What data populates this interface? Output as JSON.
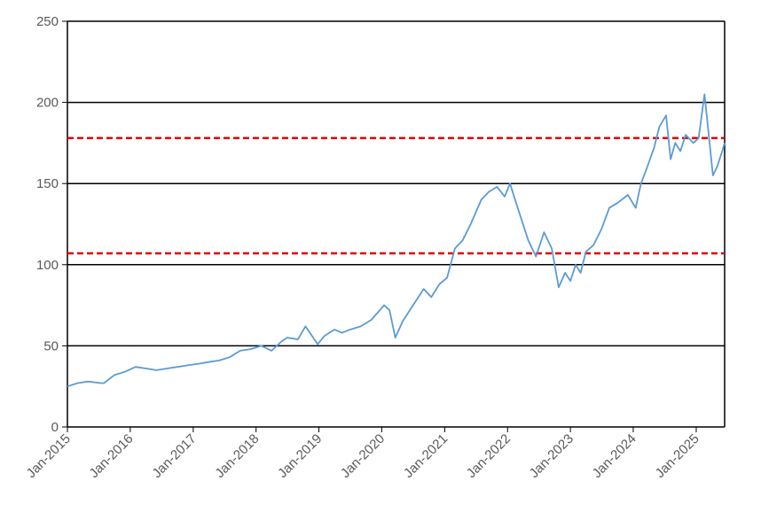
{
  "chart_data": {
    "type": "line",
    "title": "",
    "xlabel": "",
    "ylabel": "",
    "x_ticks": [
      "Jan-2015",
      "Jan-2016",
      "Jan-2017",
      "Jan-2018",
      "Jan-2019",
      "Jan-2020",
      "Jan-2021",
      "Jan-2022",
      "Jan-2023",
      "Jan-2024",
      "Jan-2025"
    ],
    "y_ticks": [
      "0",
      "50",
      "100",
      "150",
      "200",
      "250"
    ],
    "ylim": [
      0,
      250
    ],
    "xlim": [
      "2015-01-01",
      "2025-06-15"
    ],
    "grid": "horizontal",
    "legend": "none",
    "colors": {
      "series": "#5b9bd5",
      "reference": "#e00000",
      "grid": "#000000",
      "axis_text": "#595959"
    },
    "series": [
      {
        "x": [
          "2015-01-01",
          "2015-03-01",
          "2015-05-01",
          "2015-07-15",
          "2015-08-01",
          "2015-10-01",
          "2015-12-01",
          "2016-02-01",
          "2016-04-01",
          "2016-06-01",
          "2016-08-01",
          "2016-10-01",
          "2016-12-01",
          "2017-02-01",
          "2017-04-01",
          "2017-06-01",
          "2017-08-01",
          "2017-10-01",
          "2017-12-01",
          "2018-02-01",
          "2018-04-01",
          "2018-06-01",
          "2018-07-01",
          "2018-09-01",
          "2018-10-15",
          "2018-12-25",
          "2019-02-01",
          "2019-04-01",
          "2019-05-15",
          "2019-07-01",
          "2019-09-01",
          "2019-11-01",
          "2020-01-15",
          "2020-02-15",
          "2020-03-20",
          "2020-05-01",
          "2020-07-01",
          "2020-09-01",
          "2020-10-15",
          "2020-12-01",
          "2021-01-15",
          "2021-03-01",
          "2021-04-15",
          "2021-06-01",
          "2021-08-01",
          "2021-09-15",
          "2021-11-01",
          "2021-12-15",
          "2022-01-15",
          "2022-03-01",
          "2022-05-01",
          "2022-06-15",
          "2022-08-01",
          "2022-09-15",
          "2022-10-25",
          "2022-12-01",
          "2023-01-01",
          "2023-02-01",
          "2023-03-01",
          "2023-04-01",
          "2023-05-15",
          "2023-07-01",
          "2023-08-15",
          "2023-10-01",
          "2023-12-01",
          "2024-01-15",
          "2024-02-15",
          "2024-03-15",
          "2024-05-01",
          "2024-06-01",
          "2024-07-10",
          "2024-08-05",
          "2024-09-01",
          "2024-10-01",
          "2024-11-01",
          "2024-12-15",
          "2025-01-15",
          "2025-02-18",
          "2025-03-15",
          "2025-04-08",
          "2025-05-01",
          "2025-06-01",
          "2025-06-15"
        ],
        "values": [
          25,
          27,
          28,
          27,
          27,
          32,
          34,
          37,
          36,
          35,
          36,
          37,
          38,
          39,
          40,
          41,
          43,
          47,
          48,
          50,
          47,
          53,
          55,
          54,
          62,
          51,
          56,
          60,
          58,
          60,
          62,
          66,
          75,
          72,
          55,
          65,
          75,
          85,
          80,
          88,
          92,
          110,
          115,
          125,
          140,
          145,
          148,
          142,
          150,
          135,
          115,
          105,
          120,
          110,
          86,
          95,
          90,
          100,
          95,
          108,
          112,
          122,
          135,
          138,
          143,
          135,
          150,
          158,
          172,
          185,
          192,
          165,
          175,
          170,
          180,
          175,
          178,
          205,
          180,
          155,
          160,
          170,
          175
        ]
      }
    ],
    "reference_lines": [
      107,
      178
    ]
  }
}
